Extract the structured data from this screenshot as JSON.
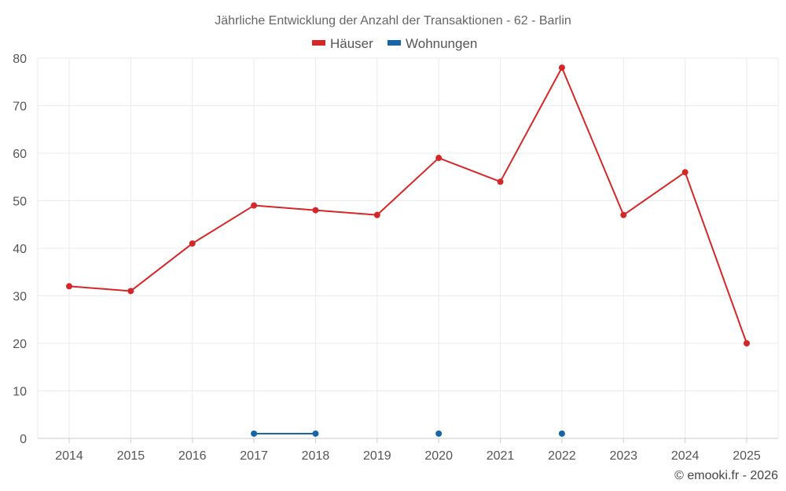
{
  "chart_data": {
    "type": "line",
    "title": "Jährliche Entwicklung der Anzahl der Transaktionen - 62 - Barlin",
    "categories": [
      "2014",
      "2015",
      "2016",
      "2017",
      "2018",
      "2019",
      "2020",
      "2021",
      "2022",
      "2023",
      "2024",
      "2025"
    ],
    "ylim": [
      0,
      80
    ],
    "yticks": [
      0,
      10,
      20,
      30,
      40,
      50,
      60,
      70,
      80
    ],
    "grid": true,
    "legend_position": "top-center",
    "series": [
      {
        "name": "Häuser",
        "color": "#d62728",
        "values": [
          32,
          31,
          41,
          49,
          48,
          47,
          59,
          54,
          78,
          47,
          56,
          20
        ]
      },
      {
        "name": "Wohnungen",
        "color": "#1565a8",
        "values": [
          null,
          null,
          null,
          1,
          1,
          null,
          1,
          null,
          1,
          null,
          null,
          null
        ]
      }
    ],
    "footer": "© emooki.fr - 2026"
  }
}
